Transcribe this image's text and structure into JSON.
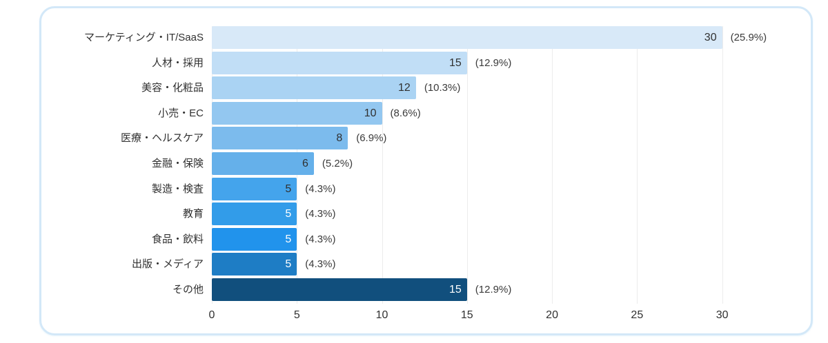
{
  "page": {
    "background": "#ffffff",
    "card_border_color": "#d3e8f8"
  },
  "chart_data": {
    "type": "bar",
    "orientation": "horizontal",
    "title": "",
    "xlabel": "",
    "ylabel": "",
    "categories": [
      "マーケティング・IT/SaaS",
      "人材・採用",
      "美容・化粧品",
      "小売・EC",
      "医療・ヘルスケア",
      "金融・保険",
      "製造・検査",
      "教育",
      "食品・飲料",
      "出版・メディア",
      "その他"
    ],
    "values": [
      30,
      15,
      12,
      10,
      8,
      6,
      5,
      5,
      5,
      5,
      15
    ],
    "percent_labels": [
      "(25.9%)",
      "(12.9%)",
      "(10.3%)",
      "(8.6%)",
      "(6.9%)",
      "(5.2%)",
      "(4.3%)",
      "(4.3%)",
      "(4.3%)",
      "(4.3%)",
      "(12.9%)"
    ],
    "bar_colors": [
      "#d8e9f8",
      "#c1def6",
      "#aad3f3",
      "#93c7f0",
      "#7cbbed",
      "#65b0ea",
      "#44a4ec",
      "#329ce9",
      "#2193ec",
      "#1e7dc5",
      "#114f7d"
    ],
    "value_label_colors": [
      "#303030",
      "#303030",
      "#303030",
      "#303030",
      "#303030",
      "#303030",
      "#303030",
      "#ffffff",
      "#ffffff",
      "#ffffff",
      "#ffffff"
    ],
    "x_ticks": [
      0,
      5,
      10,
      15,
      20,
      25,
      30
    ],
    "xlim": [
      0,
      34.6
    ],
    "grid": "vertical",
    "legend": "none",
    "value_label_position": "inside-end",
    "percent_label_position": "outside-end"
  }
}
